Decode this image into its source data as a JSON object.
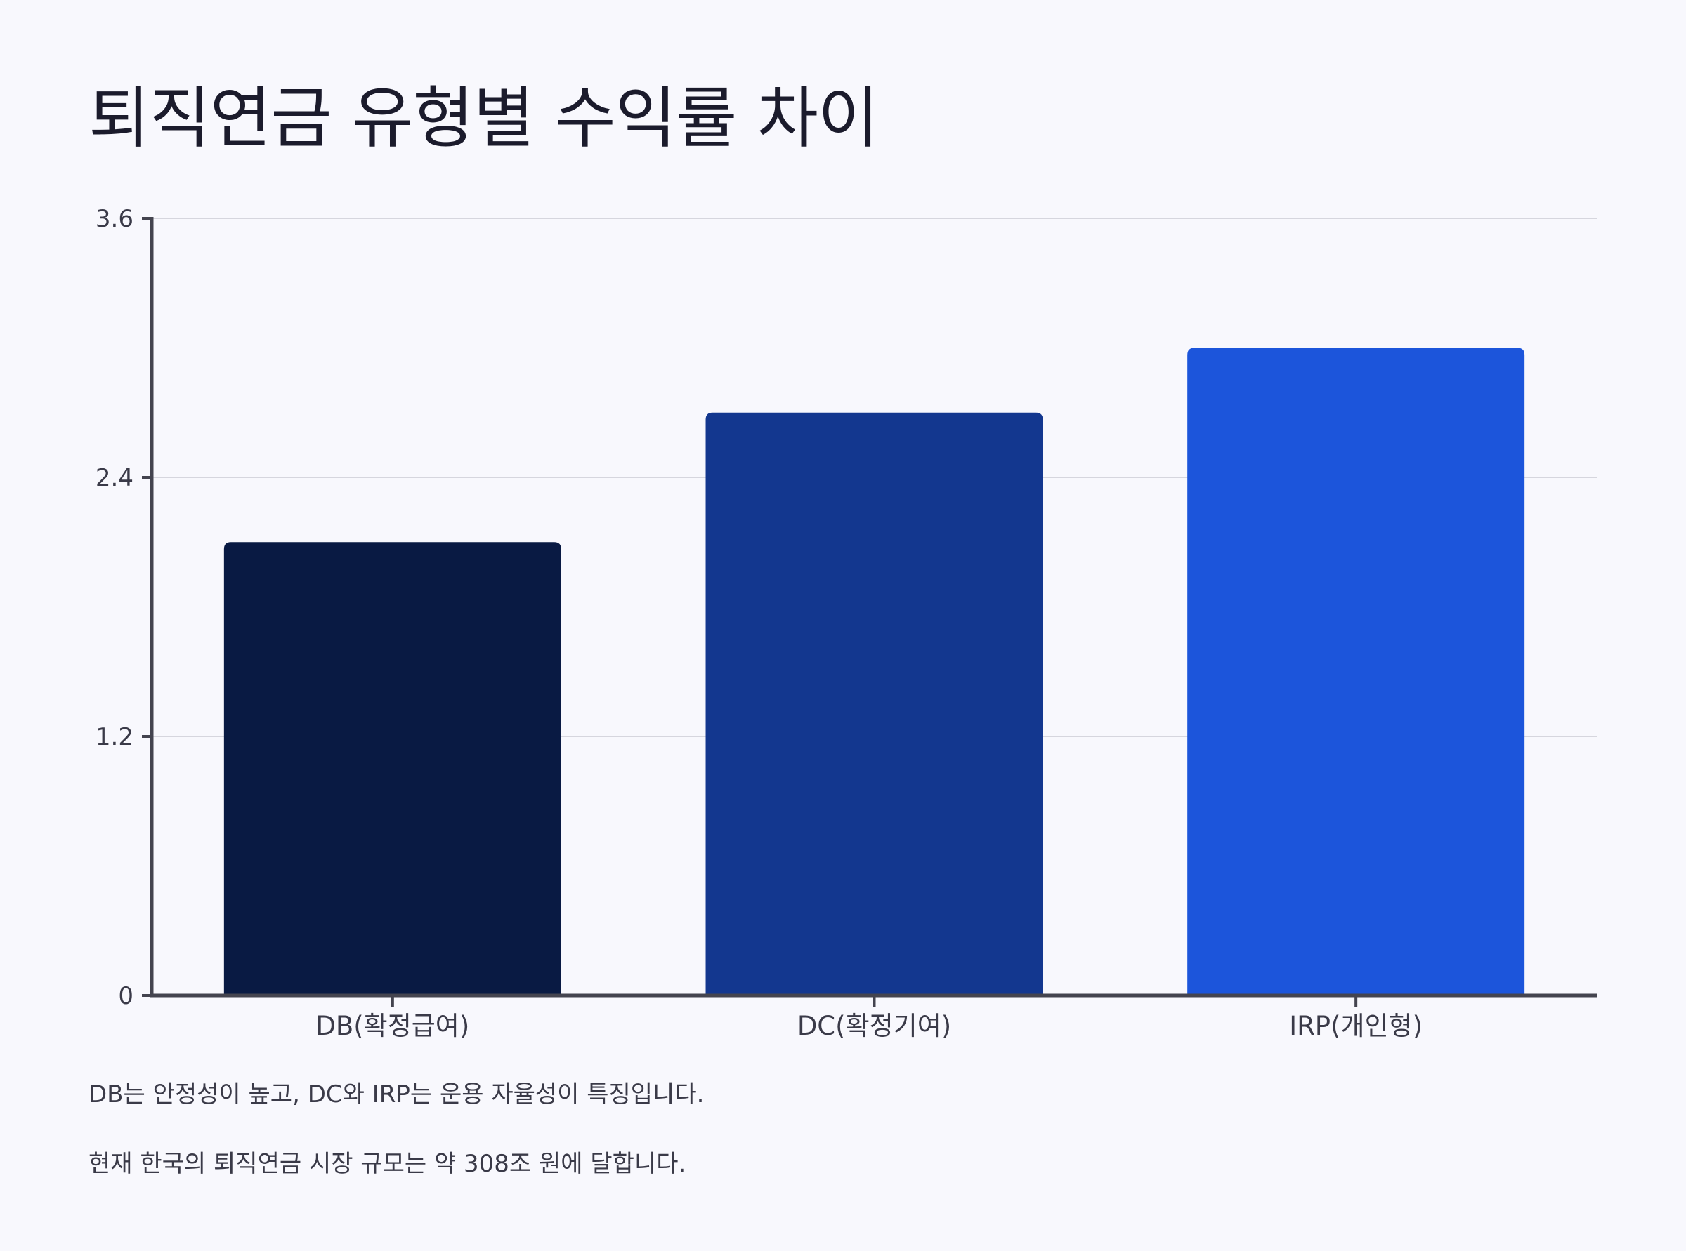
{
  "chart_data": {
    "type": "bar",
    "title": "퇴직연금 유형별 수익률 차이",
    "categories": [
      "DB(확정급여)",
      "DC(확정기여)",
      "IRP(개인형)"
    ],
    "values": [
      2.1,
      2.7,
      3.0
    ],
    "colors": [
      "#091a43",
      "#13378f",
      "#1c55db"
    ],
    "ylim": [
      0,
      3.6
    ],
    "yticks": [
      0,
      1.2,
      2.4,
      3.6
    ],
    "ytick_labels": [
      "0",
      "1.2",
      "2.4",
      "3.6"
    ],
    "xlabel": "",
    "ylabel": "",
    "grid": true,
    "legend": "none"
  },
  "notes": [
    "DB는 안정성이 높고, DC와 IRP는 운용 자율성이 특징입니다.",
    "현재 한국의 퇴직연금 시장 규모는 약 308조 원에 달합니다."
  ],
  "colors": {
    "background": "#f8f8fd",
    "axis": "#44444f",
    "grid": "#d6d6de",
    "text": "#3a3a48"
  }
}
